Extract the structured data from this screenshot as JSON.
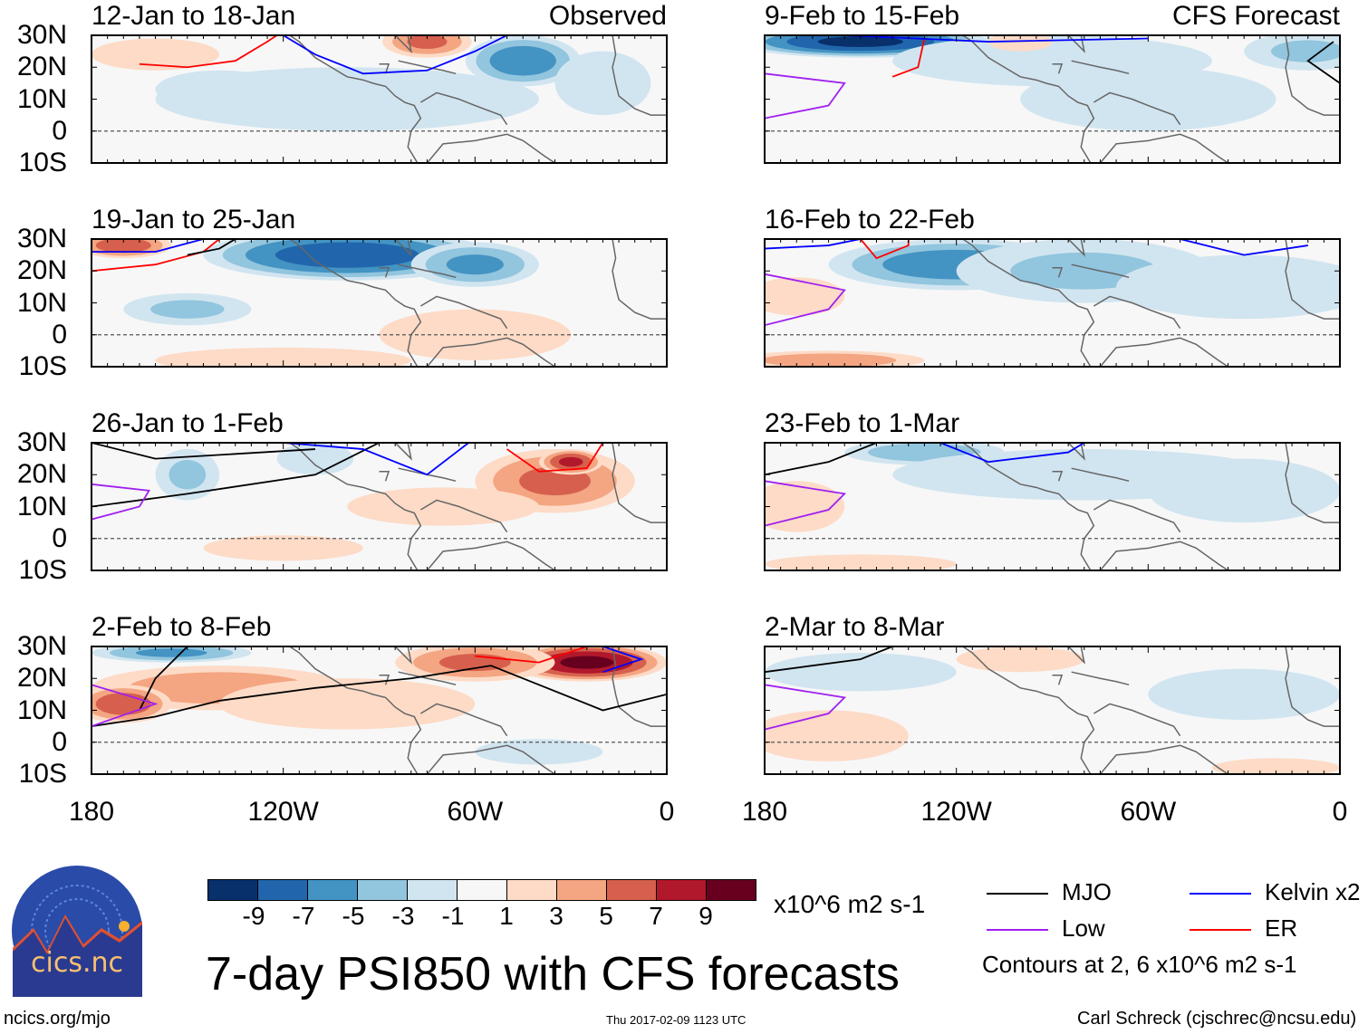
{
  "title": "7-day PSI850 with CFS forecasts",
  "units": "x10^6 m2 s-1",
  "contour_note": "Contours at 2, 6 x10^6 m2 s-1",
  "footer": {
    "left": "ncics.org/mjo",
    "center": "Thu 2017-02-09 1123 UTC",
    "right": "Carl Schreck (cjschrec@ncsu.edu)"
  },
  "logo": {
    "text": "cics.nc",
    "ring_text": "Cooperative Institute for Climate and Satellites"
  },
  "column_labels": {
    "left": "Observed",
    "right": "CFS Forecast"
  },
  "lat_ticks": [
    "30N",
    "20N",
    "10N",
    "0",
    "10S"
  ],
  "lon_ticks": [
    "180",
    "120W",
    "60W",
    "0"
  ],
  "colorbar": {
    "labels": [
      "-9",
      "-7",
      "-5",
      "-3",
      "-1",
      "1",
      "3",
      "5",
      "7",
      "9"
    ],
    "colors": [
      "#08306b",
      "#2166ac",
      "#4393c3",
      "#92c5de",
      "#d1e5f0",
      "#f7f7f7",
      "#fddbc7",
      "#f4a582",
      "#d6604d",
      "#b2182b",
      "#67001f"
    ]
  },
  "legend": [
    {
      "label": "MJO",
      "color": "#000000"
    },
    {
      "label": "Kelvin x2",
      "color": "#0000ff"
    },
    {
      "label": "Low",
      "color": "#a020f0"
    },
    {
      "label": "ER",
      "color": "#ff0000"
    }
  ],
  "chart_data": {
    "type": "heatmap",
    "variable": "PSI850 anomaly",
    "lon_range": [
      -180,
      0
    ],
    "lat_range": [
      -10,
      30
    ],
    "panels": [
      {
        "title": "12-Jan to 18-Jan",
        "blobs": [
          [
            -45,
            22,
            18,
            8,
            -6
          ],
          [
            -75,
            28,
            14,
            5,
            5
          ],
          [
            -140,
            13,
            20,
            6,
            -2
          ],
          [
            -100,
            10,
            60,
            10,
            -1
          ],
          [
            -20,
            15,
            15,
            10,
            -2
          ],
          [
            -160,
            24,
            20,
            5,
            1
          ]
        ],
        "contours": [
          {
            "type": "ER",
            "pts": [
              [
                -165,
                21
              ],
              [
                -150,
                20
              ],
              [
                -135,
                22
              ],
              [
                -125,
                28
              ],
              [
                -122,
                30
              ]
            ]
          },
          {
            "type": "Kelvin",
            "pts": [
              [
                -120,
                30
              ],
              [
                -110,
                24
              ],
              [
                -95,
                18
              ],
              [
                -75,
                19
              ],
              [
                -60,
                25
              ],
              [
                -50,
                30
              ]
            ]
          }
        ]
      },
      {
        "title": "19-Jan to 25-Jan",
        "blobs": [
          [
            -100,
            25,
            45,
            8,
            -8
          ],
          [
            -60,
            22,
            20,
            7,
            -5
          ],
          [
            -170,
            28,
            15,
            4,
            6
          ],
          [
            -150,
            8,
            20,
            5,
            -3
          ],
          [
            -60,
            0,
            30,
            8,
            2
          ],
          [
            -120,
            -8,
            40,
            4,
            2
          ]
        ],
        "contours": [
          {
            "type": "ER",
            "pts": [
              [
                -180,
                20
              ],
              [
                -160,
                22
              ],
              [
                -145,
                26
              ],
              [
                -140,
                30
              ]
            ]
          },
          {
            "type": "Kelvin",
            "pts": [
              [
                -180,
                26
              ],
              [
                -160,
                26
              ],
              [
                -145,
                30
              ]
            ]
          },
          {
            "type": "MJO",
            "pts": [
              [
                -150,
                25
              ],
              [
                -140,
                27
              ],
              [
                -135,
                30
              ]
            ]
          }
        ]
      },
      {
        "title": "26-Jan to 1-Feb",
        "blobs": [
          [
            -35,
            18,
            25,
            10,
            5
          ],
          [
            -30,
            24,
            10,
            4,
            7
          ],
          [
            -150,
            20,
            10,
            8,
            -3
          ],
          [
            -110,
            25,
            12,
            5,
            -1
          ],
          [
            -120,
            -3,
            25,
            4,
            1
          ],
          [
            -70,
            10,
            30,
            6,
            1
          ]
        ],
        "contours": [
          {
            "type": "MJO",
            "pts": [
              [
                -180,
                10
              ],
              [
                -150,
                14
              ],
              [
                -110,
                20
              ],
              [
                -90,
                30
              ]
            ]
          },
          {
            "type": "MJO",
            "pts": [
              [
                -180,
                30
              ],
              [
                -160,
                25
              ],
              [
                -110,
                28
              ]
            ]
          },
          {
            "type": "Low",
            "pts": [
              [
                -180,
                6
              ],
              [
                -165,
                10
              ],
              [
                -162,
                15
              ],
              [
                -180,
                17
              ]
            ]
          },
          {
            "type": "Kelvin",
            "pts": [
              [
                -120,
                30
              ],
              [
                -95,
                28
              ],
              [
                -75,
                20
              ],
              [
                -62,
                30
              ]
            ]
          },
          {
            "type": "ER",
            "pts": [
              [
                -50,
                28
              ],
              [
                -40,
                21
              ],
              [
                -25,
                22
              ],
              [
                -20,
                30
              ]
            ]
          }
        ]
      },
      {
        "title": "2-Feb to 8-Feb",
        "blobs": [
          [
            -25,
            25,
            25,
            6,
            9
          ],
          [
            -60,
            25,
            25,
            6,
            5
          ],
          [
            -140,
            17,
            40,
            7,
            4
          ],
          [
            -170,
            12,
            15,
            6,
            6
          ],
          [
            -100,
            12,
            40,
            8,
            2
          ],
          [
            -155,
            28,
            25,
            3,
            -5
          ],
          [
            -40,
            -3,
            20,
            4,
            -1
          ]
        ],
        "contours": [
          {
            "type": "MJO",
            "pts": [
              [
                -180,
                5
              ],
              [
                -160,
                8
              ],
              [
                -140,
                13
              ],
              [
                -110,
                17
              ],
              [
                -80,
                20
              ],
              [
                -55,
                24
              ],
              [
                -40,
                18
              ],
              [
                -20,
                10
              ],
              [
                0,
                15
              ]
            ]
          },
          {
            "type": "MJO",
            "pts": [
              [
                -165,
                10
              ],
              [
                -160,
                20
              ],
              [
                -150,
                30
              ]
            ]
          },
          {
            "type": "Low",
            "pts": [
              [
                -180,
                5
              ],
              [
                -160,
                12
              ],
              [
                -180,
                18
              ]
            ]
          },
          {
            "type": "ER",
            "pts": [
              [
                -60,
                27
              ],
              [
                -40,
                25
              ],
              [
                -25,
                30
              ]
            ]
          },
          {
            "type": "Kelvin",
            "pts": [
              [
                -20,
                30
              ],
              [
                -8,
                26
              ],
              [
                -20,
                22
              ]
            ]
          }
        ]
      },
      {
        "title": "9-Feb to 15-Feb",
        "blobs": [
          [
            -150,
            28,
            40,
            5,
            -9
          ],
          [
            -90,
            22,
            50,
            8,
            -2
          ],
          [
            -10,
            25,
            20,
            6,
            -3
          ],
          [
            -60,
            10,
            40,
            10,
            -1
          ],
          [
            -100,
            28,
            10,
            3,
            2
          ]
        ],
        "contours": [
          {
            "type": "Low",
            "pts": [
              [
                -180,
                4
              ],
              [
                -160,
                8
              ],
              [
                -155,
                15
              ],
              [
                -180,
                18
              ]
            ]
          },
          {
            "type": "ER",
            "pts": [
              [
                -140,
                17
              ],
              [
                -132,
                20
              ],
              [
                -130,
                29
              ]
            ]
          },
          {
            "type": "Kelvin",
            "pts": [
              [
                -155,
                30
              ],
              [
                -110,
                28
              ],
              [
                -60,
                29
              ]
            ]
          },
          {
            "type": "MJO",
            "pts": [
              [
                0,
                15
              ],
              [
                -10,
                22
              ],
              [
                -2,
                28
              ]
            ]
          }
        ]
      },
      {
        "title": "16-Feb to 22-Feb",
        "blobs": [
          [
            -120,
            22,
            40,
            8,
            -6
          ],
          [
            -80,
            20,
            40,
            10,
            -3
          ],
          [
            -30,
            15,
            40,
            10,
            -2
          ],
          [
            -170,
            12,
            15,
            6,
            2
          ],
          [
            -160,
            -8,
            30,
            3,
            4
          ]
        ],
        "contours": [
          {
            "type": "Low",
            "pts": [
              [
                -180,
                3
              ],
              [
                -160,
                8
              ],
              [
                -155,
                14
              ],
              [
                -180,
                19
              ]
            ]
          },
          {
            "type": "Kelvin",
            "pts": [
              [
                -180,
                27
              ],
              [
                -160,
                28
              ],
              [
                -150,
                30
              ]
            ]
          },
          {
            "type": "ER",
            "pts": [
              [
                -150,
                30
              ],
              [
                -145,
                24
              ],
              [
                -135,
                28
              ],
              [
                -135,
                30
              ]
            ]
          },
          {
            "type": "Kelvin",
            "pts": [
              [
                -50,
                30
              ],
              [
                -30,
                25
              ],
              [
                -10,
                28
              ]
            ]
          }
        ]
      },
      {
        "title": "23-Feb to 1-Mar",
        "blobs": [
          [
            -130,
            27,
            25,
            4,
            -4
          ],
          [
            -80,
            20,
            60,
            8,
            -2
          ],
          [
            -30,
            15,
            30,
            10,
            -1
          ],
          [
            -170,
            10,
            15,
            8,
            1
          ],
          [
            -150,
            -8,
            30,
            3,
            1
          ]
        ],
        "contours": [
          {
            "type": "MJO",
            "pts": [
              [
                -180,
                20
              ],
              [
                -160,
                24
              ],
              [
                -145,
                30
              ]
            ]
          },
          {
            "type": "Low",
            "pts": [
              [
                -180,
                4
              ],
              [
                -160,
                9
              ],
              [
                -155,
                14
              ],
              [
                -180,
                18
              ]
            ]
          },
          {
            "type": "Kelvin",
            "pts": [
              [
                -125,
                30
              ],
              [
                -110,
                24
              ],
              [
                -85,
                27
              ],
              [
                -80,
                30
              ]
            ]
          }
        ]
      },
      {
        "title": "2-Mar to 8-Mar",
        "blobs": [
          [
            -150,
            22,
            30,
            6,
            -1
          ],
          [
            -30,
            15,
            30,
            8,
            -1
          ],
          [
            -160,
            2,
            25,
            8,
            1
          ],
          [
            -100,
            26,
            20,
            4,
            1
          ],
          [
            -20,
            -8,
            20,
            3,
            1
          ]
        ],
        "contours": [
          {
            "type": "MJO",
            "pts": [
              [
                -180,
                22
              ],
              [
                -150,
                26
              ],
              [
                -140,
                30
              ]
            ]
          },
          {
            "type": "Low",
            "pts": [
              [
                -180,
                4
              ],
              [
                -160,
                9
              ],
              [
                -155,
                14
              ],
              [
                -180,
                18
              ]
            ]
          }
        ]
      }
    ]
  }
}
